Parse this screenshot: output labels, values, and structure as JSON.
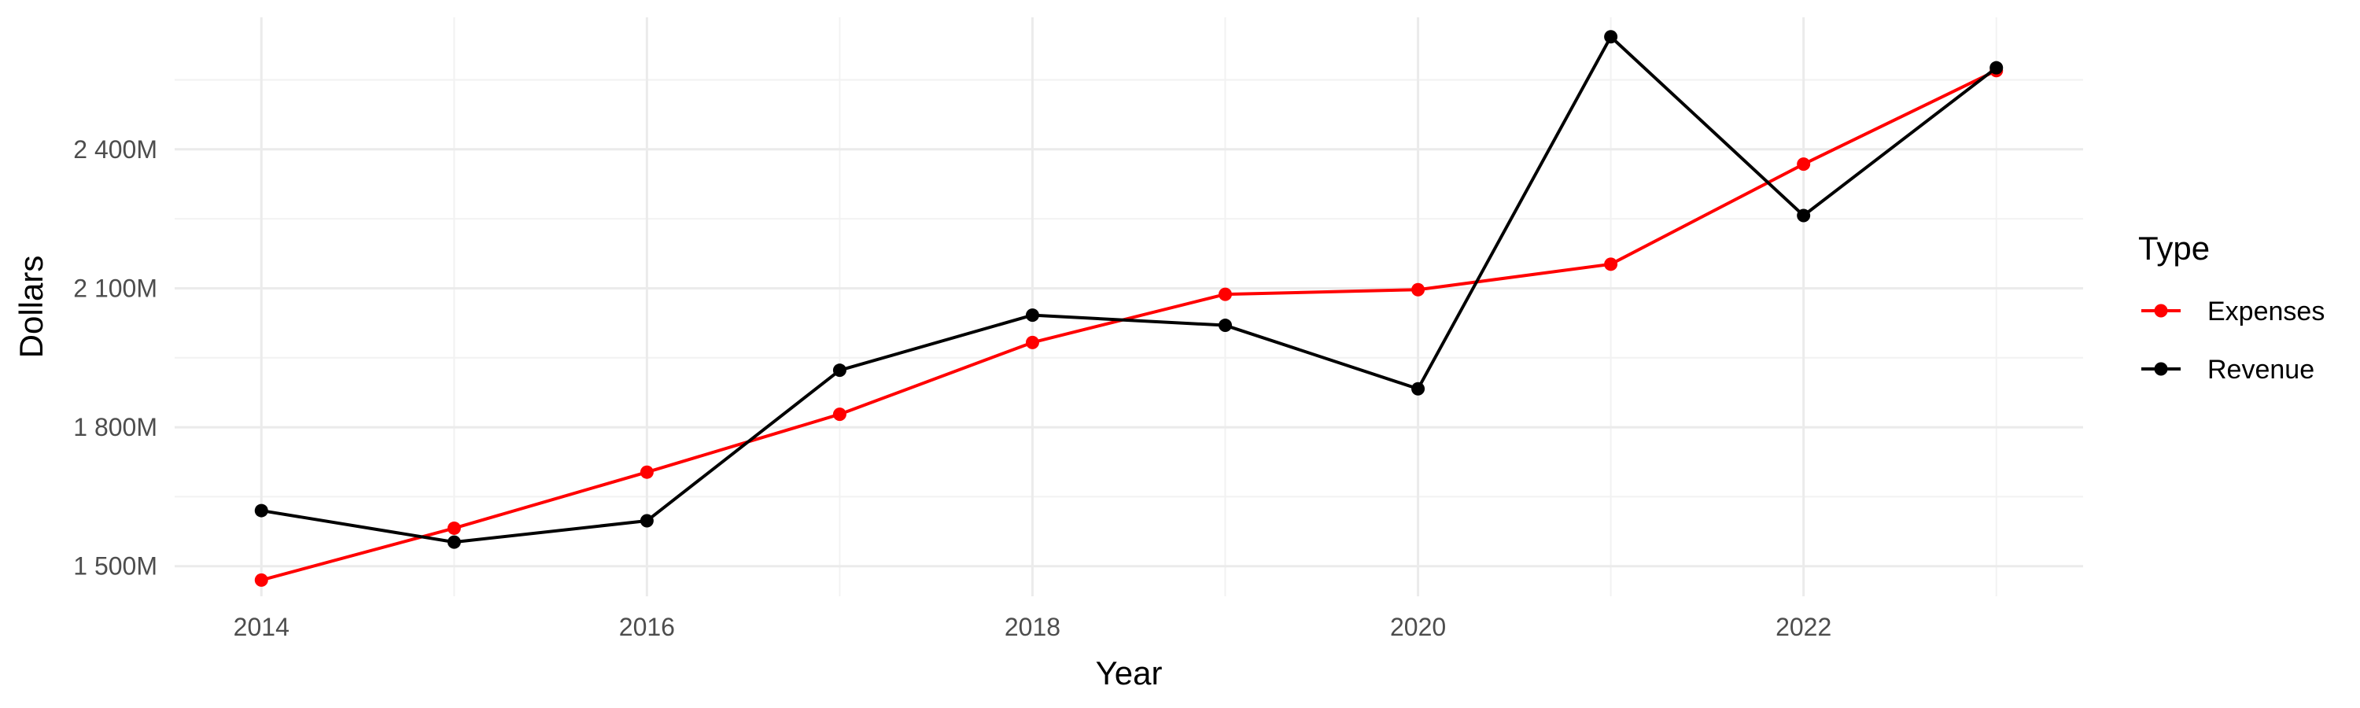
{
  "chart_data": {
    "type": "line",
    "title": "",
    "xlabel": "Year",
    "ylabel": "Dollars",
    "x": [
      2014,
      2015,
      2016,
      2017,
      2018,
      2019,
      2020,
      2021,
      2022,
      2023
    ],
    "xlim": [
      2013.55,
      2023.45
    ],
    "ylim": [
      1435,
      2685
    ],
    "x_ticks": [
      2014,
      2016,
      2018,
      2020,
      2022
    ],
    "x_tick_labels": [
      "2014",
      "2016",
      "2018",
      "2020",
      "2022"
    ],
    "y_ticks": [
      1500,
      1800,
      2100,
      2400
    ],
    "y_tick_labels": [
      "1 500M",
      "1 800M",
      "2 100M",
      "2 400M"
    ],
    "grid": true,
    "legend": {
      "title": "Type",
      "position": "right"
    },
    "series": [
      {
        "name": "Expenses",
        "color": "#ff0000",
        "values": [
          1470,
          1582,
          1703,
          1828,
          1983,
          2087,
          2097,
          2152,
          2368,
          2570
        ]
      },
      {
        "name": "Revenue",
        "color": "#000000",
        "values": [
          1620,
          1552,
          1598,
          1923,
          2042,
          2020,
          1883,
          2643,
          2257,
          2576
        ]
      }
    ]
  }
}
